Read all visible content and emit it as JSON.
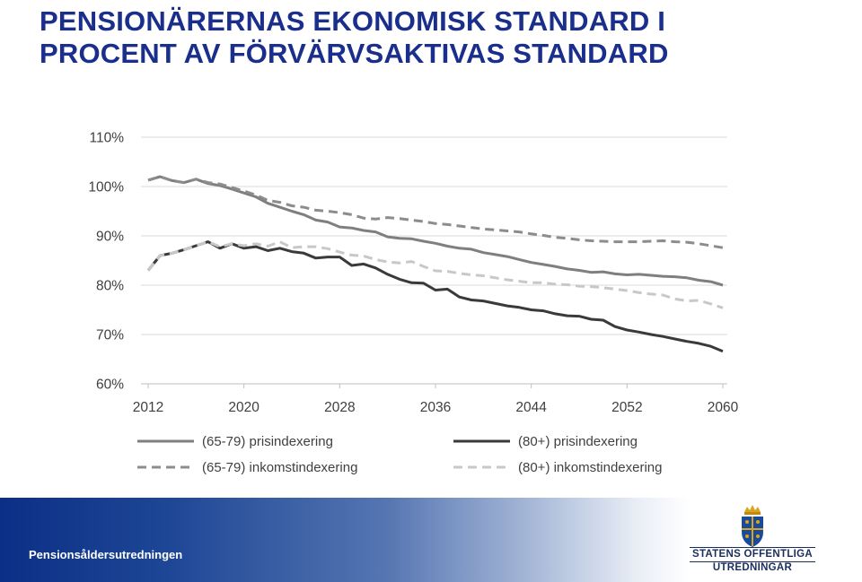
{
  "title": {
    "line1": "PENSIONÄRERNAS EKONOMISK STANDARD I",
    "line2": "PROCENT AV FÖRVÄRVSAKTIVAS STANDARD"
  },
  "footer": {
    "text": "Pensionsåldersutredningen",
    "logo_line1": "STATENS OFFENTLIGA",
    "logo_line2": "UTREDNINGAR",
    "logo_icon": "crown-shield-icon"
  },
  "colors": {
    "title": "#1a2e8c",
    "footer_start": "#0b2f86",
    "series_65_79_pris": "#7f7f7f",
    "series_80_pris": "#3a3a3a",
    "series_65_79_inkomst": "#8c8c8c",
    "series_80_inkomst": "#c8c8c8"
  },
  "chart_data": {
    "type": "line",
    "x": [
      2012,
      2013,
      2014,
      2015,
      2016,
      2017,
      2018,
      2019,
      2020,
      2021,
      2022,
      2023,
      2024,
      2025,
      2026,
      2027,
      2028,
      2029,
      2030,
      2031,
      2032,
      2033,
      2034,
      2035,
      2036,
      2037,
      2038,
      2039,
      2040,
      2041,
      2042,
      2043,
      2044,
      2045,
      2046,
      2047,
      2048,
      2049,
      2050,
      2051,
      2052,
      2053,
      2054,
      2055,
      2056,
      2057,
      2058,
      2059,
      2060
    ],
    "xticks": [
      "2012",
      "2020",
      "2028",
      "2036",
      "2044",
      "2052",
      "2060"
    ],
    "yticks": [
      "60%",
      "70%",
      "80%",
      "90%",
      "100%",
      "110%"
    ],
    "ylim": [
      60,
      110
    ],
    "grid": "horizontal",
    "legend": "bottom",
    "series": [
      {
        "name": "(65-79) prisindexering",
        "style": "solid",
        "color": "#7f7f7f",
        "values": [
          101.3,
          102,
          101.2,
          100.8,
          101.5,
          100.6,
          100.2,
          99.5,
          98.7,
          97.9,
          96.6,
          95.8,
          95.0,
          94.3,
          93.2,
          92.8,
          91.8,
          91.6,
          91.1,
          90.8,
          89.8,
          89.5,
          89.4,
          88.9,
          88.5,
          87.9,
          87.5,
          87.3,
          86.6,
          86.2,
          85.8,
          85.2,
          84.6,
          84.2,
          83.8,
          83.3,
          83.0,
          82.6,
          82.7,
          82.3,
          82.1,
          82.2,
          82.0,
          81.8,
          81.7,
          81.5,
          81.0,
          80.7,
          80.0
        ]
      },
      {
        "name": "(80+) prisindexering",
        "style": "solid",
        "color": "#3a3a3a",
        "values": [
          83.0,
          86.0,
          86.5,
          87.2,
          88.0,
          88.8,
          87.5,
          88.4,
          87.5,
          87.8,
          87.0,
          87.5,
          86.8,
          86.5,
          85.5,
          85.7,
          85.7,
          84.0,
          84.3,
          83.5,
          82.2,
          81.2,
          80.5,
          80.4,
          79.0,
          79.2,
          77.6,
          77.0,
          76.8,
          76.3,
          75.8,
          75.5,
          75.0,
          74.8,
          74.2,
          73.8,
          73.7,
          73.1,
          72.9,
          71.6,
          70.9,
          70.5,
          70.0,
          69.6,
          69.1,
          68.6,
          68.2,
          67.6,
          66.6
        ]
      },
      {
        "name": "(65-79) inkomstindexering",
        "style": "dashed",
        "color": "#8c8c8c",
        "values": [
          101.3,
          102,
          101.2,
          100.8,
          101.5,
          100.8,
          100.5,
          99.8,
          99.1,
          98.3,
          97.2,
          96.8,
          96.1,
          95.8,
          95.2,
          95.0,
          94.7,
          94.3,
          93.6,
          93.4,
          93.7,
          93.5,
          93.2,
          92.9,
          92.5,
          92.3,
          92.0,
          91.7,
          91.4,
          91.2,
          91.0,
          90.8,
          90.4,
          90.1,
          89.7,
          89.5,
          89.2,
          89.0,
          88.9,
          88.8,
          88.8,
          88.8,
          88.9,
          89.0,
          88.8,
          88.7,
          88.4,
          88.0,
          87.6
        ]
      },
      {
        "name": "(80+) inkomstindexering",
        "style": "dashed",
        "color": "#c8c8c8",
        "values": [
          83.0,
          86.0,
          86.5,
          87.2,
          88.0,
          88.8,
          87.8,
          88.4,
          88.0,
          88.4,
          87.9,
          88.8,
          87.6,
          87.8,
          87.8,
          87.4,
          86.7,
          86.1,
          85.9,
          85.2,
          84.7,
          84.5,
          84.8,
          83.8,
          82.9,
          82.8,
          82.4,
          82.1,
          81.9,
          81.5,
          81.1,
          80.8,
          80.5,
          80.5,
          80.2,
          80.1,
          79.8,
          79.7,
          79.5,
          79.2,
          78.9,
          78.5,
          78.2,
          78.0,
          77.2,
          76.8,
          76.9,
          76.2,
          75.4
        ]
      }
    ]
  }
}
